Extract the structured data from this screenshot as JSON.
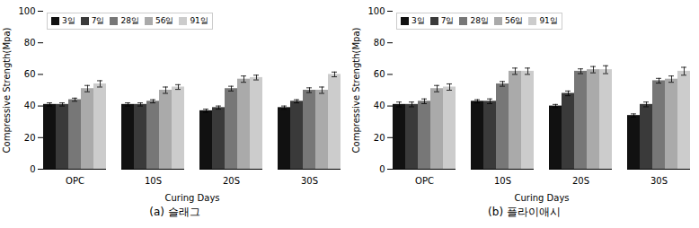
{
  "chart_data": [
    {
      "type": "bar",
      "subtitle": "(a)  슬래그",
      "xlabel": "Curing Days",
      "ylabel": "Compressive Strength(Mpa)",
      "categories": [
        "OPC",
        "10S",
        "20S",
        "30S"
      ],
      "series": [
        {
          "name": "3일",
          "color": "#111111",
          "values": [
            41,
            41,
            37,
            39
          ],
          "errors": [
            1.0,
            1.0,
            1.0,
            1.0
          ]
        },
        {
          "name": "7일",
          "color": "#3a3a3a",
          "values": [
            41,
            41,
            39,
            43
          ],
          "errors": [
            1.0,
            1.0,
            1.0,
            1.0
          ]
        },
        {
          "name": "28일",
          "color": "#777777",
          "values": [
            44,
            43,
            51,
            50
          ],
          "errors": [
            1.0,
            1.0,
            1.5,
            1.5
          ]
        },
        {
          "name": "56일",
          "color": "#aaaaaa",
          "values": [
            51,
            50,
            57,
            50
          ],
          "errors": [
            2.0,
            2.0,
            2.0,
            2.0
          ]
        },
        {
          "name": "91일",
          "color": "#cccccc",
          "values": [
            54,
            52,
            58,
            60
          ],
          "errors": [
            2.0,
            1.5,
            1.5,
            1.5
          ]
        }
      ],
      "ylim": [
        0,
        100
      ],
      "yticks": [
        0,
        20,
        40,
        60,
        80,
        100
      ],
      "legend": "upper left"
    },
    {
      "type": "bar",
      "subtitle": "(b)  플라이애시",
      "xlabel": "Curing Days",
      "ylabel": "Compressive Strength(Mpa)",
      "categories": [
        "OPC",
        "10S",
        "20S",
        "30S"
      ],
      "series": [
        {
          "name": "3일",
          "color": "#111111",
          "values": [
            41,
            43,
            40,
            34
          ],
          "errors": [
            1.5,
            1.0,
            1.0,
            1.0
          ]
        },
        {
          "name": "7일",
          "color": "#3a3a3a",
          "values": [
            41,
            43,
            48,
            41
          ],
          "errors": [
            1.5,
            1.5,
            1.5,
            1.5
          ]
        },
        {
          "name": "28일",
          "color": "#777777",
          "values": [
            43,
            54,
            62,
            56
          ],
          "errors": [
            1.5,
            1.5,
            1.5,
            1.5
          ]
        },
        {
          "name": "56일",
          "color": "#aaaaaa",
          "values": [
            51,
            62,
            63,
            57
          ],
          "errors": [
            2.0,
            2.0,
            2.0,
            2.0
          ]
        },
        {
          "name": "91일",
          "color": "#cccccc",
          "values": [
            52,
            62,
            63,
            62
          ],
          "errors": [
            2.0,
            2.0,
            2.5,
            2.5
          ]
        }
      ],
      "ylim": [
        0,
        100
      ],
      "yticks": [
        0,
        20,
        40,
        60,
        80,
        100
      ],
      "legend": "upper left"
    }
  ]
}
